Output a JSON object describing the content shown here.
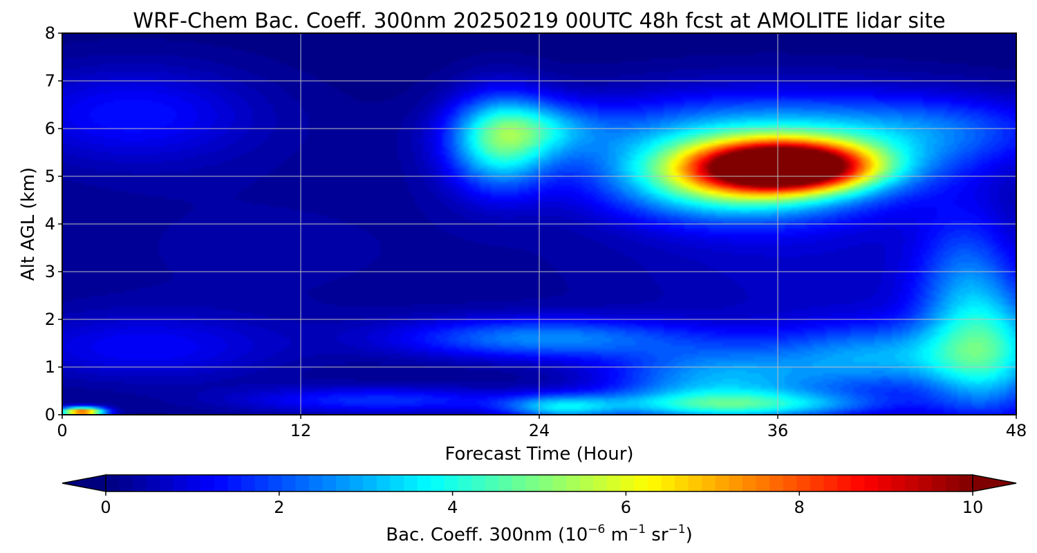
{
  "chart_data": {
    "type": "heatmap",
    "title": "WRF-Chem Bac. Coeff. 300nm  20250219 00UTC 48h fcst at AMOLITE lidar site",
    "xlabel": "Forecast Time (Hour)",
    "ylabel": "Alt AGL (km)",
    "xlim": [
      0,
      48
    ],
    "ylim": [
      0,
      8
    ],
    "xticks": [
      0,
      12,
      24,
      36,
      48
    ],
    "yticks": [
      0,
      1,
      2,
      3,
      4,
      5,
      6,
      7,
      8
    ],
    "grid": true,
    "colormap": "jet",
    "colorbar": {
      "label_prefix": "Bac. Coeff. 300nm  (10",
      "label_exp1": "−6",
      "label_mid": " m",
      "label_exp2": "−1",
      "label_mid2": " sr",
      "label_exp3": "−1",
      "label_suffix": ")",
      "range": [
        0,
        10
      ],
      "ticks": [
        0,
        2,
        4,
        6,
        8,
        10
      ],
      "extend": "both",
      "orientation": "horizontal",
      "under_color": "#00007f",
      "over_color": "#7f0000"
    },
    "features": [
      {
        "x": 36.5,
        "y": 5.2,
        "sx": 3.0,
        "sy": 0.35,
        "v": 9.6
      },
      {
        "x": 33.5,
        "y": 4.9,
        "sx": 3.8,
        "sy": 0.55,
        "v": 3.2
      },
      {
        "x": 35.5,
        "y": 5.3,
        "sx": 6.0,
        "sy": 0.85,
        "v": 2.6
      },
      {
        "x": 36.0,
        "y": 5.9,
        "sx": 8.0,
        "sy": 0.6,
        "v": 1.5
      },
      {
        "x": 22.0,
        "y": 5.7,
        "sx": 1.8,
        "sy": 0.7,
        "v": 3.6
      },
      {
        "x": 24.0,
        "y": 6.0,
        "sx": 2.3,
        "sy": 0.4,
        "v": 1.8
      },
      {
        "x": 3.5,
        "y": 6.3,
        "sx": 4.5,
        "sy": 0.7,
        "v": 1.3
      },
      {
        "x": 45.0,
        "y": 6.0,
        "sx": 4.0,
        "sy": 0.5,
        "v": 1.0
      },
      {
        "x": 46.5,
        "y": 1.3,
        "sx": 2.2,
        "sy": 0.9,
        "v": 3.6
      },
      {
        "x": 45.5,
        "y": 3.0,
        "sx": 1.8,
        "sy": 1.0,
        "v": 1.6
      },
      {
        "x": 41.0,
        "y": 1.2,
        "sx": 3.5,
        "sy": 0.5,
        "v": 2.4
      },
      {
        "x": 33.0,
        "y": 0.7,
        "sx": 4.0,
        "sy": 0.55,
        "v": 2.8
      },
      {
        "x": 24.0,
        "y": 1.6,
        "sx": 5.0,
        "sy": 0.3,
        "v": 2.4
      },
      {
        "x": 16.0,
        "y": 0.3,
        "sx": 5.0,
        "sy": 0.2,
        "v": 1.6
      },
      {
        "x": 25.0,
        "y": 0.15,
        "sx": 2.0,
        "sy": 0.18,
        "v": 2.6
      },
      {
        "x": 34.0,
        "y": 0.2,
        "sx": 5.0,
        "sy": 0.2,
        "v": 2.8
      },
      {
        "x": 4.0,
        "y": 1.4,
        "sx": 5.0,
        "sy": 0.5,
        "v": 1.1
      },
      {
        "x": 1.0,
        "y": 0.06,
        "sx": 0.8,
        "sy": 0.07,
        "v": 8.0
      },
      {
        "x": 10.0,
        "y": 3.5,
        "sx": 10.0,
        "sy": 1.5,
        "v": 0.3
      },
      {
        "x": 38.0,
        "y": 2.8,
        "sx": 8.0,
        "sy": 1.0,
        "v": 0.6
      }
    ]
  }
}
